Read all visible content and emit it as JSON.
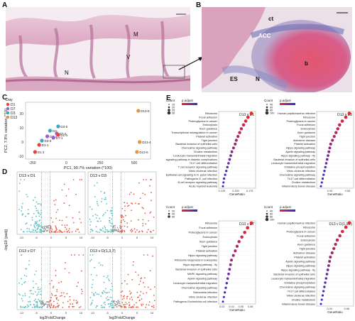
{
  "panels": {
    "A": "A",
    "B": "B",
    "C": "C",
    "D": "D",
    "E": "E"
  },
  "panelA": {
    "labels": {
      "M": "M",
      "V": "V",
      "N": "N"
    }
  },
  "panelB": {
    "labels": {
      "ct": "ct",
      "ACC": "ACC",
      "ES": "ES",
      "N": "N",
      "b": "b"
    }
  },
  "colors": {
    "D1": "#e8413c",
    "D7": "#9a5fd0",
    "D3": "#3aa8b8",
    "D13": "#e9924a",
    "up": "#e06048",
    "down": "#5bbfc2",
    "high": "#e8262b",
    "low": "#2b2bd6"
  },
  "chart_data": [
    {
      "type": "scatter",
      "panel": "C",
      "xlabel": "PC1, 90.7% variation (*100)",
      "ylabel": "PC2, 7.8% variation (*10)",
      "legend_title": "Day",
      "legend": [
        "D1",
        "D7",
        "D3",
        "D13"
      ],
      "xticks": [
        "-250",
        "0",
        "250",
        "500"
      ],
      "yticks": [
        "-10",
        "0",
        "10",
        "20"
      ],
      "points": [
        {
          "label": "D13-5",
          "x": 530,
          "y": 22,
          "group": "D13"
        },
        {
          "label": "D13-4",
          "x": 540,
          "y": 0,
          "group": "D13"
        },
        {
          "label": "D13-6",
          "x": 520,
          "y": -7,
          "group": "D13"
        },
        {
          "label": "D3-5",
          "x": -60,
          "y": 11,
          "group": "D3"
        },
        {
          "label": "D3-",
          "x": -120,
          "y": 8,
          "group": "D3"
        },
        {
          "label": "D7-2",
          "x": -70,
          "y": 6,
          "group": "D7"
        },
        {
          "label": "D7-3",
          "x": -140,
          "y": 4,
          "group": "D7"
        },
        {
          "label": "D1 6",
          "x": -60,
          "y": 5,
          "group": "D1"
        },
        {
          "label": "D7-1",
          "x": -95,
          "y": 3,
          "group": "D7"
        },
        {
          "label": "D3-3",
          "x": -180,
          "y": 1,
          "group": "D3"
        },
        {
          "label": "D1-1",
          "x": -200,
          "y": -2,
          "group": "D1"
        },
        {
          "label": "D1 2",
          "x": -230,
          "y": -7,
          "group": "D1"
        }
      ]
    },
    {
      "type": "scatter",
      "panel": "D",
      "xlabel": "log2FoldChange",
      "ylabel": "-log10 (padj)",
      "subplots": [
        "D13 v D1",
        "D13 v D3",
        "D13 v D7",
        "D13 v D(1,3,7)"
      ],
      "xticks": [
        "-10",
        "-5",
        "0",
        "5",
        "10"
      ]
    },
    {
      "type": "scatter",
      "panel": "E1",
      "title": "D13 v D1",
      "xlabel": "GeneRatio",
      "legend_size_title": "Count",
      "legend_color_title": "p.adjust",
      "size_legend": [
        "15",
        "20",
        "25",
        "30"
      ],
      "xticks": [
        "0.125",
        "0.150",
        "0.175"
      ],
      "terms": [
        "Ribosome",
        "Focal adhesion",
        "Proteoglycans in cancer",
        "Endocytosis",
        "Axon guidance",
        "Transcriptional misregulation in cancer",
        "Platelet activation",
        "Tight junction",
        "Bacterial invasion of epithelial cells",
        "Chemokine signaling pathway",
        "Choline metabolism",
        "Leukocyte transendothelial migration",
        "ECM-RAGE signaling pathway in diabetic complications",
        "Th17 cell differentiation",
        "T cell receptor signaling pathway",
        "Vibrio cholerae infection",
        "Epithelial cell signaling in H. pylori infection",
        "Pathogenic E. coli infection",
        "B cell receptor signaling pathway",
        "Acute myeloid leukemia"
      ],
      "x": [
        0.178,
        0.172,
        0.168,
        0.164,
        0.16,
        0.157,
        0.154,
        0.151,
        0.149,
        0.146,
        0.143,
        0.141,
        0.139,
        0.137,
        0.135,
        0.133,
        0.131,
        0.129,
        0.128,
        0.127
      ]
    },
    {
      "type": "scatter",
      "panel": "E2",
      "title": "D13 v D3",
      "xlabel": "GeneRatio",
      "legend_size_title": "Count",
      "legend_color_title": "p.adjust",
      "size_legend": [
        "40",
        "60",
        "80",
        "100"
      ],
      "xticks": [
        "0.02",
        "0.04",
        "0.06"
      ],
      "terms": [
        "Human papillomavirus infection",
        "Ribosome",
        "Proteoglycans in cancer",
        "Focal adhesion",
        "Endocytosis",
        "Axon guidance",
        "Tight junction",
        "Alzheimer disease",
        "Platelet activation",
        "Hippo signaling pathway",
        "Apelin signaling pathway",
        "Hippo signaling pathway - fly",
        "Bacterial invasion of epithelial cells",
        "Leukocyte transendothelial migration",
        "Oxidative phosphorylation",
        "Vibrio cholerae infection",
        "Chemokine signaling pathway",
        "Th17 cell differentiation",
        "Choline metabolism",
        "Inflammatory bowel disease"
      ],
      "x": [
        0.062,
        0.058,
        0.054,
        0.051,
        0.049,
        0.047,
        0.045,
        0.043,
        0.041,
        0.04,
        0.039,
        0.038,
        0.037,
        0.036,
        0.035,
        0.034,
        0.033,
        0.032,
        0.031,
        0.03
      ]
    },
    {
      "type": "scatter",
      "panel": "E3",
      "title": "D13 v D7",
      "xlabel": "GeneRatio",
      "legend_size_title": "Count",
      "legend_color_title": "p.adjust",
      "size_legend": [
        "20",
        "40",
        "60"
      ],
      "xticks": [
        "0.02",
        "0.03",
        "0.04",
        "0.05",
        "0.06"
      ],
      "terms": [
        "Ribosome",
        "Focal adhesion",
        "Proteoglycans in cancer",
        "Endocytosis",
        "Axon guidance",
        "Tight junction",
        "Platelet activation",
        "Hippo signaling pathway",
        "Ribosome biogenesis in eukaryotes",
        "Hippo signaling pathway - fly",
        "Bacterial invasion of epithelial cells",
        "MAPK signaling pathway",
        "Apelin signaling pathway",
        "Leukocyte transendothelial migration",
        "Chemokine signaling pathway",
        "Salmonella infection",
        "Vibrio cholerae infection",
        "Pathogenic Escherichia coli infection"
      ],
      "x": [
        0.061,
        0.057,
        0.054,
        0.051,
        0.048,
        0.046,
        0.044,
        0.042,
        0.04,
        0.039,
        0.038,
        0.037,
        0.036,
        0.035,
        0.034,
        0.033,
        0.032,
        0.031
      ]
    },
    {
      "type": "scatter",
      "panel": "E4",
      "title": "D13 v D(1,3,7)",
      "xlabel": "GeneRatio",
      "legend_size_title": "Count",
      "legend_color_title": "p.adjust",
      "size_legend": [
        "40",
        "60",
        "80",
        "100"
      ],
      "xticks": [
        "0.02",
        "0.04",
        "0.06"
      ],
      "terms": [
        "Human papillomavirus infection",
        "Ribosome",
        "Proteoglycans in cancer",
        "Focal adhesion",
        "Endocytosis",
        "Axon guidance",
        "Tight junction",
        "Alzheimer disease",
        "Platelet activation",
        "Apelin signaling pathway",
        "Hippo signaling pathway",
        "Hippo signaling pathway - fly",
        "Bacterial invasion of epithelial cells",
        "Leukocyte transendothelial migration",
        "Oxidative phosphorylation",
        "Chemokine signaling pathway",
        "Th17 cell differentiation",
        "Vibrio cholerae infection",
        "Choline metabolism",
        "Inflammatory bowel disease"
      ],
      "x": [
        0.063,
        0.059,
        0.055,
        0.052,
        0.049,
        0.047,
        0.045,
        0.043,
        0.041,
        0.04,
        0.039,
        0.038,
        0.037,
        0.036,
        0.035,
        0.034,
        0.033,
        0.032,
        0.031,
        0.03
      ]
    }
  ]
}
